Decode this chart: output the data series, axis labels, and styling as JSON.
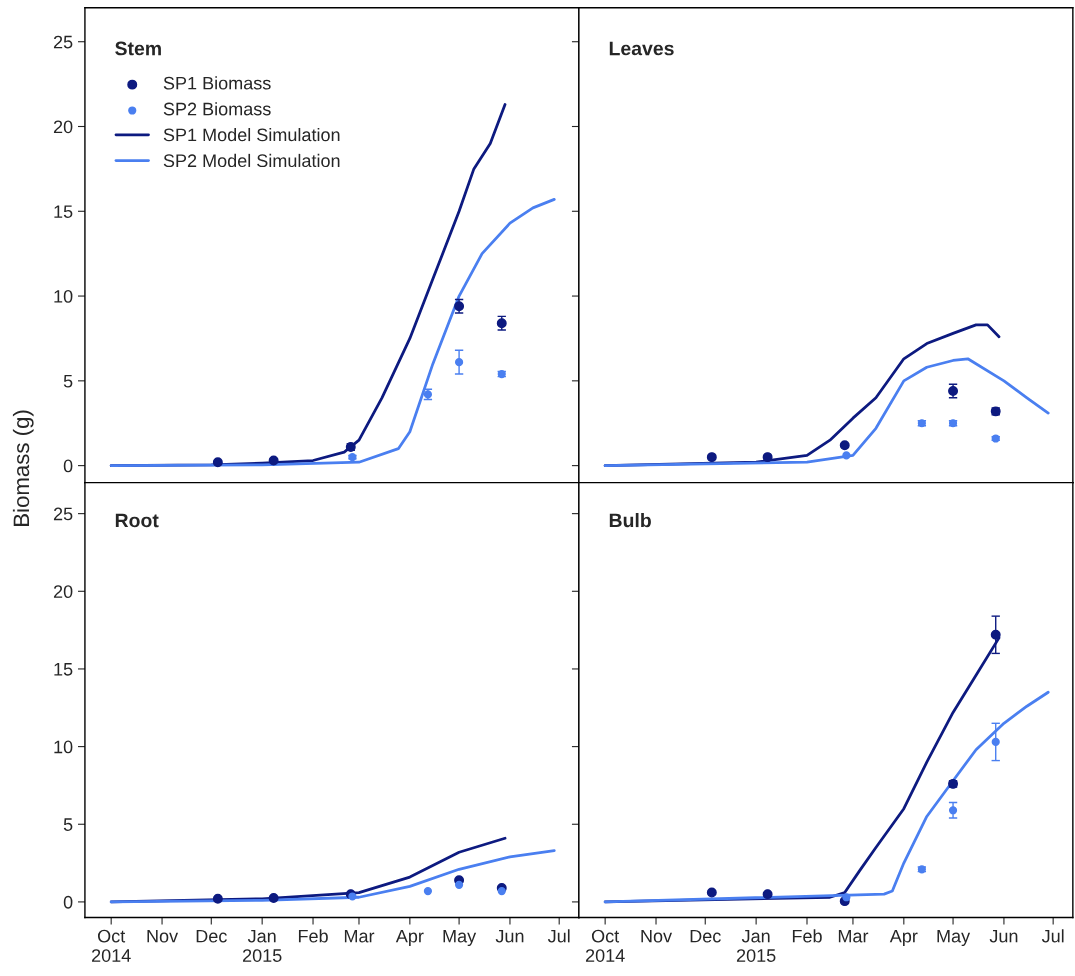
{
  "chart_data": [
    {
      "type": "line",
      "title": "Stem",
      "ylabel": "Biomass (g)",
      "legend": "top left",
      "tick_labels": "y",
      "grid": false,
      "xlim": [
        "2014-09-15",
        "2015-07-13"
      ],
      "xticks": [
        {
          "value": "2014-10-01",
          "label": null
        },
        {
          "value": "2014-11-01",
          "label": null
        },
        {
          "value": "2014-12-01",
          "label": null
        },
        {
          "value": "2015-01-01",
          "label": null
        },
        {
          "value": "2015-02-01",
          "label": null
        },
        {
          "value": "2015-03-01",
          "label": null
        },
        {
          "value": "2015-04-01",
          "label": null
        },
        {
          "value": "2015-05-01",
          "label": null
        },
        {
          "value": "2015-06-01",
          "label": null
        },
        {
          "value": "2015-07-01",
          "label": null
        }
      ],
      "ylim": [
        -1,
        27
      ],
      "yticks": [
        0,
        5,
        10,
        15,
        20,
        25
      ],
      "series": [
        {
          "name": "SP1 Biomass",
          "type": "scatter",
          "marker": "circle",
          "color": "#0d1a80",
          "x": [
            "2014-12-05",
            "2015-01-08",
            "2015-02-24",
            "2015-05-01",
            "2015-05-27"
          ],
          "values": [
            0.2,
            0.3,
            1.1,
            9.4,
            8.4
          ],
          "errors": [
            null,
            null,
            0.2,
            0.4,
            0.4
          ]
        },
        {
          "name": "SP2 Biomass",
          "type": "scatter",
          "marker": "circle",
          "color": "#4a7ff0",
          "x": [
            "2015-02-25",
            "2015-04-12",
            "2015-05-01",
            "2015-05-27"
          ],
          "values": [
            0.5,
            4.2,
            6.1,
            5.4
          ],
          "errors": [
            0.1,
            0.3,
            0.7,
            0.15
          ]
        },
        {
          "name": "SP1 Model Simulation",
          "line_style": "solid",
          "color": "#0d1a80",
          "x": [
            "2014-10-01",
            "2014-12-01",
            "2015-01-01",
            "2015-02-01",
            "2015-02-20",
            "2015-03-01",
            "2015-03-15",
            "2015-04-01",
            "2015-04-15",
            "2015-05-01",
            "2015-05-10",
            "2015-05-20",
            "2015-05-29"
          ],
          "values": [
            0,
            0.05,
            0.15,
            0.3,
            0.8,
            1.5,
            4,
            7.5,
            11,
            15,
            17.5,
            19,
            21.3
          ]
        },
        {
          "name": "SP2 Model Simulation",
          "line_style": "solid",
          "color": "#4a7ff0",
          "x": [
            "2014-10-01",
            "2015-01-01",
            "2015-03-01",
            "2015-03-25",
            "2015-04-01",
            "2015-04-15",
            "2015-05-01",
            "2015-05-15",
            "2015-06-01",
            "2015-06-15",
            "2015-06-28"
          ],
          "values": [
            0,
            0.05,
            0.2,
            1.0,
            2,
            6,
            10,
            12.5,
            14.3,
            15.2,
            15.7
          ]
        }
      ]
    },
    {
      "type": "line",
      "title": "Leaves",
      "tick_labels": false,
      "grid": false,
      "xlim": [
        "2014-09-15",
        "2015-07-13"
      ],
      "xticks": [
        {
          "value": "2014-10-01",
          "label": null
        },
        {
          "value": "2014-11-01",
          "label": null
        },
        {
          "value": "2014-12-01",
          "label": null
        },
        {
          "value": "2015-01-01",
          "label": null
        },
        {
          "value": "2015-02-01",
          "label": null
        },
        {
          "value": "2015-03-01",
          "label": null
        },
        {
          "value": "2015-04-01",
          "label": null
        },
        {
          "value": "2015-05-01",
          "label": null
        },
        {
          "value": "2015-06-01",
          "label": null
        },
        {
          "value": "2015-07-01",
          "label": null
        }
      ],
      "ylim": [
        -1,
        27
      ],
      "yticks": [
        {
          "value": 0,
          "label": null
        },
        {
          "value": 5,
          "label": null
        },
        {
          "value": 10,
          "label": null
        },
        {
          "value": 15,
          "label": null
        },
        {
          "value": 20,
          "label": null
        },
        {
          "value": 25,
          "label": null
        }
      ],
      "series": [
        {
          "type": "scatter",
          "marker": "circle",
          "color": "#0d1a80",
          "x": [
            "2014-12-05",
            "2015-01-08",
            "2015-02-24",
            "2015-05-01",
            "2015-05-27"
          ],
          "values": [
            0.5,
            0.5,
            1.2,
            4.4,
            3.2
          ],
          "errors": [
            null,
            null,
            null,
            0.4,
            0.2
          ]
        },
        {
          "type": "scatter",
          "marker": "circle",
          "color": "#4a7ff0",
          "x": [
            "2015-02-25",
            "2015-04-12",
            "2015-05-01",
            "2015-05-27"
          ],
          "values": [
            0.6,
            2.5,
            2.5,
            1.6
          ],
          "errors": [
            null,
            0.15,
            0.15,
            0.1
          ]
        },
        {
          "line_style": "solid",
          "color": "#0d1a80",
          "x": [
            "2014-10-01",
            "2015-01-01",
            "2015-02-01",
            "2015-02-15",
            "2015-03-01",
            "2015-03-15",
            "2015-04-01",
            "2015-04-15",
            "2015-05-01",
            "2015-05-15",
            "2015-05-22",
            "2015-05-29"
          ],
          "values": [
            0,
            0.2,
            0.6,
            1.5,
            2.8,
            4.0,
            6.3,
            7.2,
            7.8,
            8.3,
            8.3,
            7.6
          ]
        },
        {
          "line_style": "solid",
          "color": "#4a7ff0",
          "x": [
            "2014-10-01",
            "2015-02-01",
            "2015-03-01",
            "2015-03-15",
            "2015-04-01",
            "2015-04-15",
            "2015-05-01",
            "2015-05-10",
            "2015-06-01",
            "2015-06-15",
            "2015-06-28"
          ],
          "values": [
            0,
            0.2,
            0.6,
            2.2,
            5.0,
            5.8,
            6.2,
            6.3,
            5.0,
            4.0,
            3.1
          ]
        }
      ]
    },
    {
      "type": "line",
      "title": "Root",
      "grid": false,
      "xlim": [
        "2014-09-15",
        "2015-07-13"
      ],
      "xticks": [
        {
          "value": "2014-10-01",
          "label": "Oct\n2014"
        },
        {
          "value": "2014-11-01",
          "label": "Nov"
        },
        {
          "value": "2014-12-01",
          "label": "Dec"
        },
        {
          "value": "2015-01-01",
          "label": "Jan\n2015"
        },
        {
          "value": "2015-02-01",
          "label": "Feb"
        },
        {
          "value": "2015-03-01",
          "label": "Mar"
        },
        {
          "value": "2015-04-01",
          "label": "Apr"
        },
        {
          "value": "2015-05-01",
          "label": "May"
        },
        {
          "value": "2015-06-01",
          "label": "Jun"
        },
        {
          "value": "2015-07-01",
          "label": "Jul"
        }
      ],
      "ylim": [
        -1,
        27
      ],
      "yticks": [
        0,
        5,
        10,
        15,
        20,
        25
      ],
      "series": [
        {
          "type": "scatter",
          "marker": "circle",
          "color": "#0d1a80",
          "x": [
            "2014-12-05",
            "2015-01-08",
            "2015-02-24",
            "2015-05-01",
            "2015-05-27"
          ],
          "values": [
            0.2,
            0.25,
            0.5,
            1.4,
            0.9
          ]
        },
        {
          "type": "scatter",
          "marker": "circle",
          "color": "#4a7ff0",
          "x": [
            "2015-02-25",
            "2015-04-12",
            "2015-05-01",
            "2015-05-27"
          ],
          "values": [
            0.35,
            0.7,
            1.1,
            0.7
          ]
        },
        {
          "line_style": "solid",
          "color": "#0d1a80",
          "x": [
            "2014-10-01",
            "2015-01-01",
            "2015-03-01",
            "2015-04-01",
            "2015-05-01",
            "2015-05-29"
          ],
          "values": [
            0,
            0.2,
            0.6,
            1.6,
            3.2,
            4.1
          ]
        },
        {
          "line_style": "solid",
          "color": "#4a7ff0",
          "x": [
            "2014-10-01",
            "2015-01-01",
            "2015-03-01",
            "2015-04-01",
            "2015-05-01",
            "2015-06-01",
            "2015-06-28"
          ],
          "values": [
            0,
            0.1,
            0.3,
            1.0,
            2.1,
            2.9,
            3.3
          ]
        }
      ]
    },
    {
      "type": "line",
      "title": "Bulb",
      "tick_labels": "x",
      "grid": false,
      "xlim": [
        "2014-09-15",
        "2015-07-13"
      ],
      "xticks": [
        {
          "value": "2014-10-01",
          "label": "Oct\n2014"
        },
        {
          "value": "2014-11-01",
          "label": "Nov"
        },
        {
          "value": "2014-12-01",
          "label": "Dec"
        },
        {
          "value": "2015-01-01",
          "label": "Jan\n2015"
        },
        {
          "value": "2015-02-01",
          "label": "Feb"
        },
        {
          "value": "2015-03-01",
          "label": "Mar"
        },
        {
          "value": "2015-04-01",
          "label": "Apr"
        },
        {
          "value": "2015-05-01",
          "label": "May"
        },
        {
          "value": "2015-06-01",
          "label": "Jun"
        },
        {
          "value": "2015-07-01",
          "label": "Jul"
        }
      ],
      "ylim": [
        -1,
        27
      ],
      "yticks": [
        {
          "value": 0,
          "label": null
        },
        {
          "value": 5,
          "label": null
        },
        {
          "value": 10,
          "label": null
        },
        {
          "value": 15,
          "label": null
        },
        {
          "value": 20,
          "label": null
        },
        {
          "value": 25,
          "label": null
        }
      ],
      "series": [
        {
          "type": "scatter",
          "marker": "circle",
          "color": "#0d1a80",
          "x": [
            "2014-12-05",
            "2015-01-08",
            "2015-02-24",
            "2015-05-01",
            "2015-05-27"
          ],
          "values": [
            0.6,
            0.5,
            0.05,
            7.6,
            17.2
          ],
          "errors": [
            null,
            null,
            null,
            0.2,
            1.2
          ]
        },
        {
          "type": "scatter",
          "marker": "circle",
          "color": "#4a7ff0",
          "x": [
            "2015-02-25",
            "2015-04-12",
            "2015-05-01",
            "2015-05-27"
          ],
          "values": [
            0.3,
            2.1,
            5.9,
            10.3
          ],
          "errors": [
            null,
            0.15,
            0.5,
            1.2
          ]
        },
        {
          "line_style": "solid",
          "color": "#0d1a80",
          "x": [
            "2014-10-01",
            "2015-02-15",
            "2015-02-24",
            "2015-03-05",
            "2015-03-15",
            "2015-04-01",
            "2015-04-15",
            "2015-05-01",
            "2015-05-15",
            "2015-05-29"
          ],
          "values": [
            0,
            0.3,
            0.6,
            2.0,
            3.5,
            6.0,
            9.0,
            12.2,
            14.6,
            17.0
          ]
        },
        {
          "line_style": "solid",
          "color": "#4a7ff0",
          "x": [
            "2014-10-01",
            "2015-03-20",
            "2015-03-25",
            "2015-04-01",
            "2015-04-15",
            "2015-05-01",
            "2015-05-15",
            "2015-06-01",
            "2015-06-15",
            "2015-06-28"
          ],
          "values": [
            0,
            0.5,
            0.7,
            2.5,
            5.5,
            7.8,
            9.8,
            11.5,
            12.6,
            13.5
          ]
        }
      ]
    }
  ]
}
